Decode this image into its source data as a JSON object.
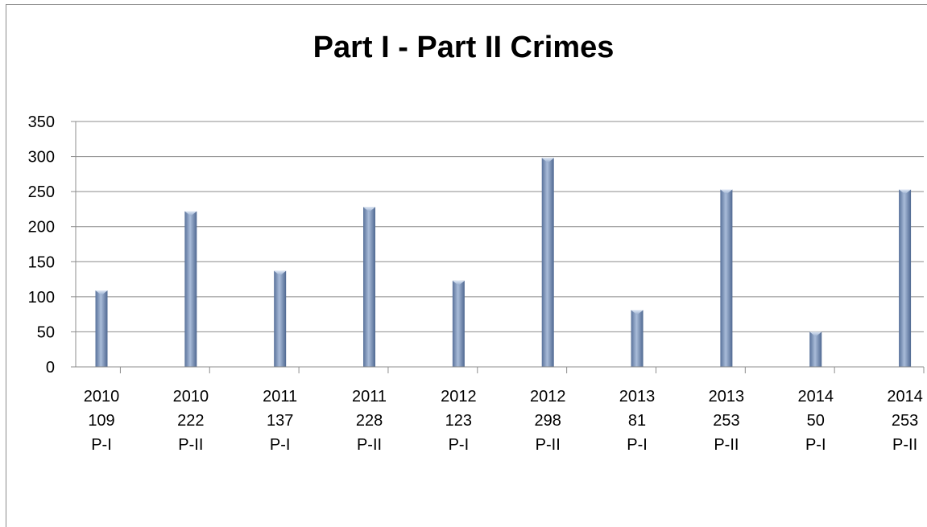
{
  "chart_data": {
    "type": "bar",
    "title": "Part I - Part II Crimes",
    "xlabel": "",
    "ylabel": "",
    "ylim": [
      0,
      350
    ],
    "yticks": [
      "0",
      "50",
      "100",
      "150",
      "200",
      "250",
      "300",
      "350"
    ],
    "grid": true,
    "legend": "none",
    "bar_color": "#7f97bd",
    "categories": [
      [
        "2010",
        "109",
        "P-I"
      ],
      [
        "2010",
        "222",
        "P-II"
      ],
      [
        "2011",
        "137",
        "P-I"
      ],
      [
        "2011",
        "228",
        "P-II"
      ],
      [
        "2012",
        "123",
        "P-I"
      ],
      [
        "2012",
        "298",
        "P-II"
      ],
      [
        "2013",
        "81",
        "P-I"
      ],
      [
        "2013",
        "253",
        "P-II"
      ],
      [
        "2014",
        "50",
        "P-I"
      ],
      [
        "2014",
        "253",
        "P-II"
      ]
    ],
    "values": [
      109,
      222,
      137,
      228,
      123,
      298,
      81,
      253,
      50,
      253
    ]
  }
}
